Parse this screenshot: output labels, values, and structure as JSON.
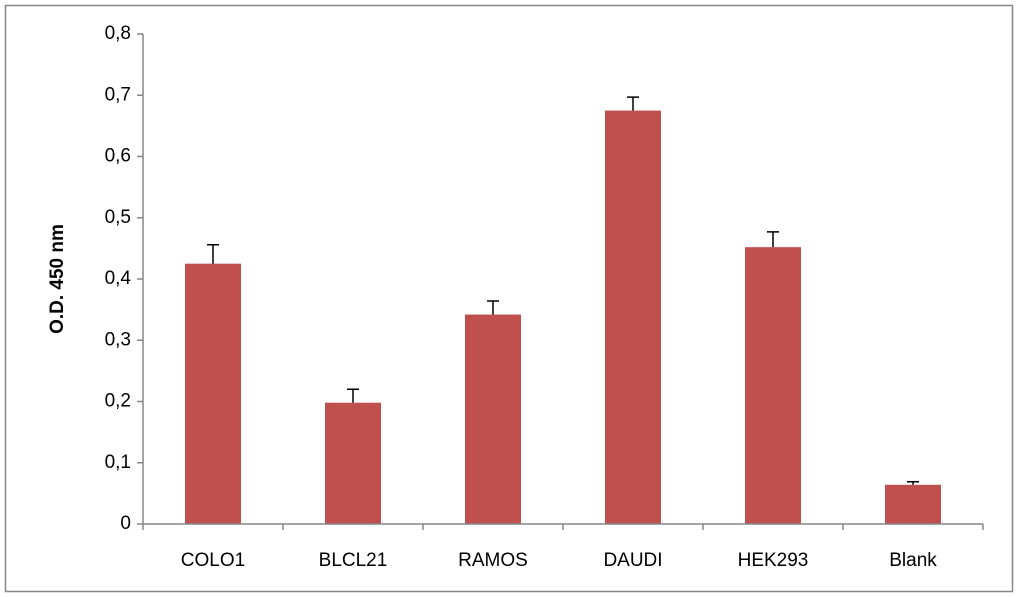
{
  "chart_data": {
    "type": "bar",
    "y_label": "O.D. 450 nm",
    "categories": [
      "COLO1",
      "BLCL21",
      "RAMOS",
      "DAUDI",
      "HEK293",
      "Blank"
    ],
    "values": [
      0.425,
      0.198,
      0.342,
      0.675,
      0.452,
      0.064
    ],
    "errors": [
      0.031,
      0.022,
      0.022,
      0.022,
      0.025,
      0.005
    ],
    "color": "#c0504d",
    "ylim": [
      0,
      0.8
    ],
    "yticks": [
      0,
      {
        "value": 0.1,
        "label": "0,1"
      },
      {
        "value": 0.2,
        "label": "0,2"
      },
      {
        "value": 0.3,
        "label": "0,3"
      },
      {
        "value": 0.4,
        "label": "0,4"
      },
      {
        "value": 0.5,
        "label": "0,5"
      },
      {
        "value": 0.6,
        "label": "0,6"
      },
      {
        "value": 0.7,
        "label": "0,7"
      },
      {
        "value": 0.8,
        "label": "0,8"
      }
    ]
  }
}
